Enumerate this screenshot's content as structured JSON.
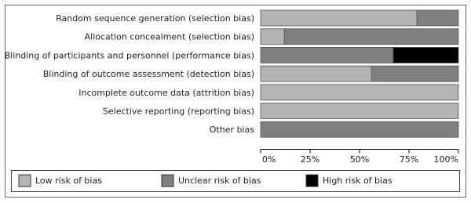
{
  "chart_data": {
    "type": "stacked-bar-horizontal",
    "categories": [
      "Random sequence generation (selection bias)",
      "Allocation concealment (selection bias)",
      "Blinding of participants and personnel (performance bias)",
      "Blinding of outcome assessment (detection bias)",
      "Incomplete outcome data (attrition bias)",
      "Selective reporting (reporting bias)",
      "Other bias"
    ],
    "series": [
      {
        "name": "Low risk of bias",
        "color": "#b4b4b4",
        "values": [
          79,
          12,
          0,
          56,
          100,
          100,
          0
        ]
      },
      {
        "name": "Unclear risk of bias",
        "color": "#7f7f7f",
        "values": [
          21,
          88,
          67,
          44,
          0,
          0,
          100
        ]
      },
      {
        "name": "High risk of bias",
        "color": "#000000",
        "values": [
          0,
          0,
          33,
          0,
          0,
          0,
          0
        ]
      }
    ],
    "xlim": [
      0,
      100
    ],
    "xticks": [
      {
        "value": 0,
        "label": "0%"
      },
      {
        "value": 25,
        "label": "25%"
      },
      {
        "value": 50,
        "label": "50%"
      },
      {
        "value": 75,
        "label": "75%"
      },
      {
        "value": 100,
        "label": "100%"
      }
    ],
    "legend": "bottom"
  }
}
